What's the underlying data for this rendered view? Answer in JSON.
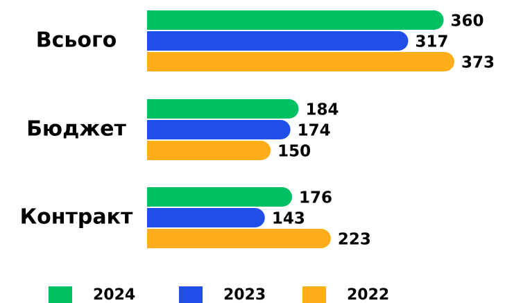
{
  "chart_data": {
    "type": "bar",
    "orientation": "horizontal",
    "categories": [
      "Всього",
      "Бюджет",
      "Контракт"
    ],
    "series": [
      {
        "name": "2024",
        "color": "#00c064",
        "values": [
          360,
          184,
          176
        ]
      },
      {
        "name": "2023",
        "color": "#1f4fe8",
        "values": [
          317,
          174,
          143
        ]
      },
      {
        "name": "2022",
        "color": "#ffae1a",
        "values": [
          373,
          150,
          223
        ]
      }
    ],
    "legend": "bottom"
  }
}
